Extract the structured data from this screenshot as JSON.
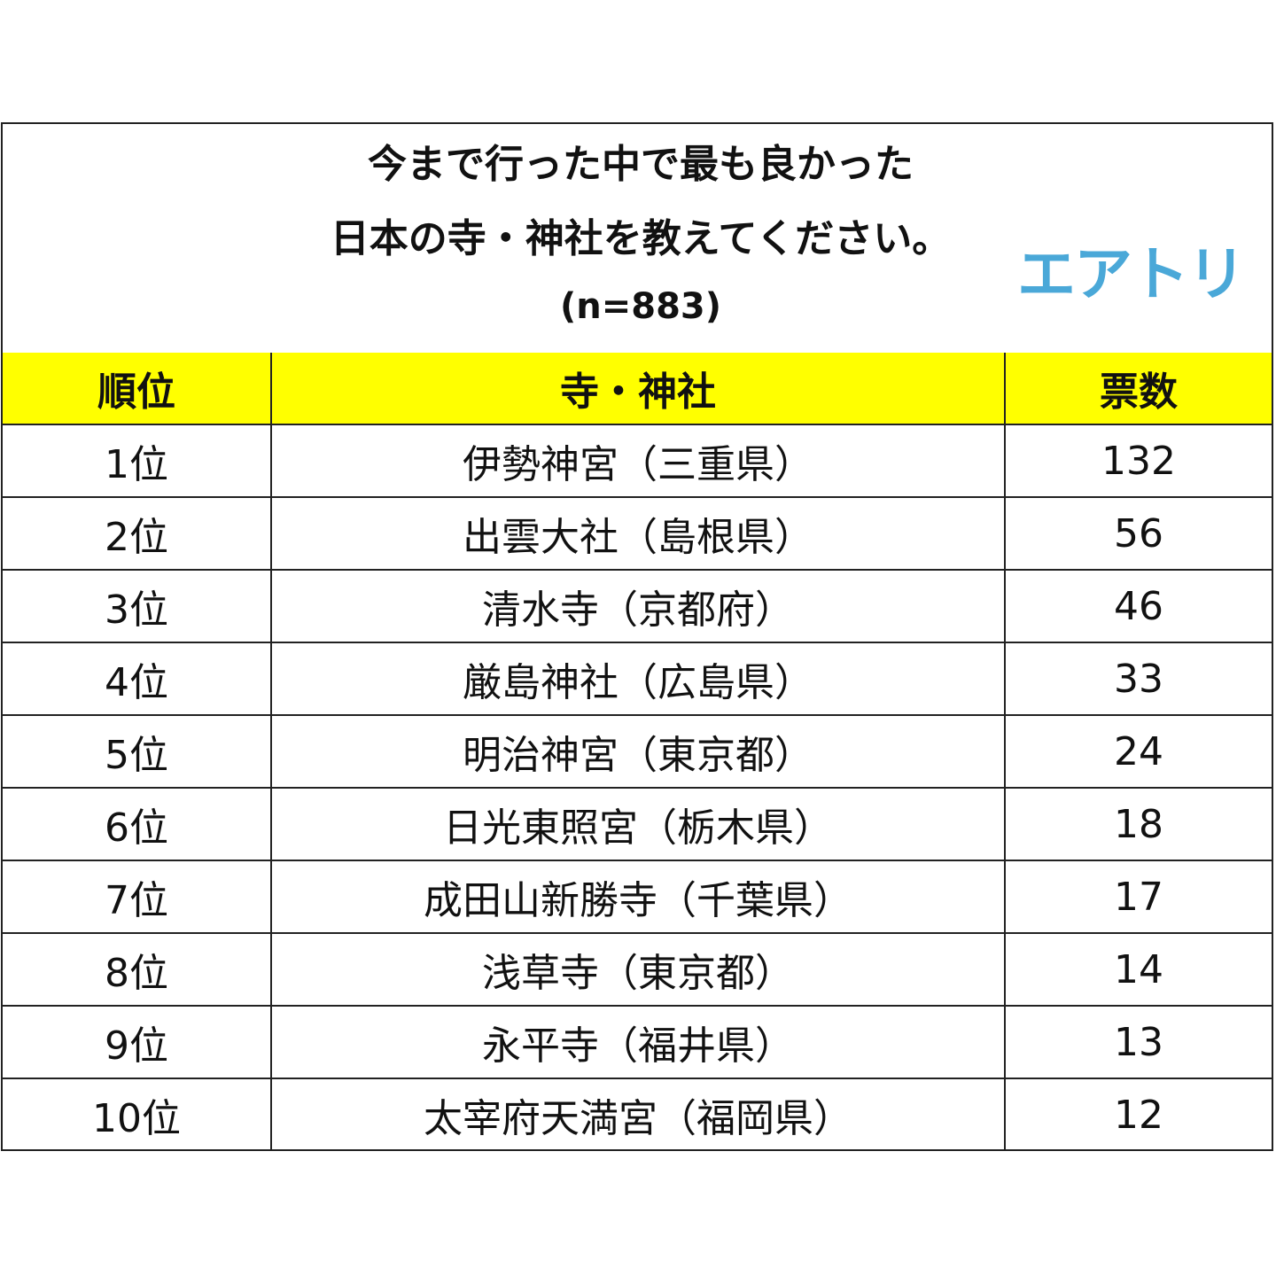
{
  "title": {
    "line1": "今まで行った中で最も良かった",
    "line2": "日本の寺・神社を教えてください。",
    "sample_size": "(n=883)"
  },
  "brand": {
    "logo_text": "エアトリ",
    "color": "#4aa8d8"
  },
  "colors": {
    "header_background": "#ffff00"
  },
  "chart_data": {
    "type": "table",
    "columns": [
      "順位",
      "寺・神社",
      "票数"
    ],
    "rows": [
      [
        "1位",
        "伊勢神宮（三重県）",
        "132"
      ],
      [
        "2位",
        "出雲大社（島根県）",
        "56"
      ],
      [
        "3位",
        "清水寺（京都府）",
        "46"
      ],
      [
        "4位",
        "厳島神社（広島県）",
        "33"
      ],
      [
        "5位",
        "明治神宮（東京都）",
        "24"
      ],
      [
        "6位",
        "日光東照宮（栃木県）",
        "18"
      ],
      [
        "7位",
        "成田山新勝寺（千葉県）",
        "17"
      ],
      [
        "8位",
        "浅草寺（東京都）",
        "14"
      ],
      [
        "9位",
        "永平寺（福井県）",
        "13"
      ],
      [
        "10位",
        "太宰府天満宮（福岡県）",
        "12"
      ]
    ]
  }
}
